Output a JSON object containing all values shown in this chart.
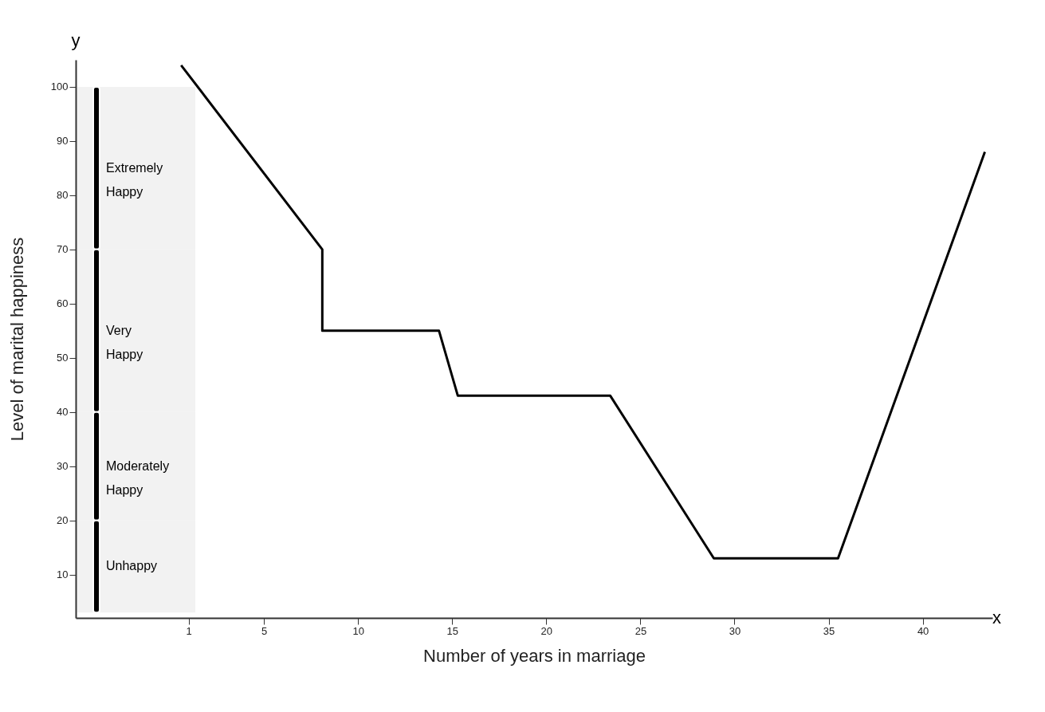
{
  "chart_data": {
    "type": "line",
    "xlabel": "Number of years in marriage",
    "ylabel": "Level of marital happiness",
    "x": [
      0.6,
      8.1,
      8.1,
      14.3,
      15.3,
      23.4,
      28.9,
      35.5,
      43.3
    ],
    "series": [
      {
        "color": "#000000",
        "values": [
          104,
          70,
          55,
          55,
          43,
          43,
          13,
          13,
          88
        ]
      }
    ],
    "xlim": [
      -5,
      43.7
    ],
    "ylim": [
      2,
      105
    ],
    "xticks": [
      1,
      5,
      10,
      15,
      20,
      25,
      30,
      35,
      40
    ],
    "yticks": [
      10,
      20,
      30,
      40,
      50,
      60,
      70,
      80,
      90,
      100
    ],
    "grid": false,
    "legend": false,
    "marker": "none",
    "line_style": "solid",
    "bands": [
      {
        "axis": "y",
        "from": 70,
        "to": 100,
        "label": "Extremely Happy",
        "color": "#000000"
      },
      {
        "axis": "y",
        "from": 40,
        "to": 70,
        "label": "Very Happy",
        "color": "#000000"
      },
      {
        "axis": "y",
        "from": 20,
        "to": 40,
        "label": "Moderately Happy",
        "color": "#000000"
      },
      {
        "axis": "y",
        "from": 3,
        "to": 20,
        "label": "Unhappy",
        "color": "#000000"
      }
    ],
    "annotations": [
      "y",
      "x"
    ]
  }
}
